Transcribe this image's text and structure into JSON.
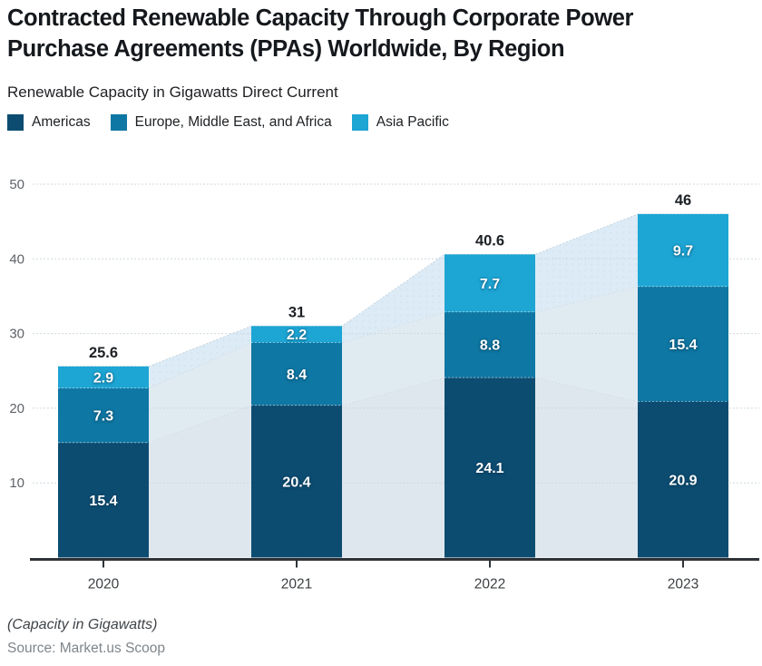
{
  "header": {
    "title": "Contracted Renewable Capacity Through Corporate Power Purchase Agreements (PPAs) Worldwide, By Region",
    "subtitle": "Renewable Capacity in Gigawatts Direct Current"
  },
  "legend": [
    {
      "label": "Americas",
      "color": "#0d4c71"
    },
    {
      "label": "Europe, Middle East, and Africa",
      "color": "#0e77a3"
    },
    {
      "label": "Asia Pacific",
      "color": "#1da5d4"
    }
  ],
  "chart_data": {
    "type": "bar",
    "stacked": true,
    "title": "Contracted Renewable Capacity Through Corporate Power Purchase Agreements (PPAs) Worldwide, By Region",
    "subtitle": "Renewable Capacity in Gigawatts Direct Current",
    "categories": [
      "2020",
      "2021",
      "2022",
      "2023"
    ],
    "series": [
      {
        "name": "Americas",
        "color": "#0d4c71",
        "values": [
          15.4,
          20.4,
          24.1,
          20.9
        ]
      },
      {
        "name": "Europe, Middle East, and Africa",
        "color": "#0e77a3",
        "values": [
          7.3,
          8.4,
          8.8,
          15.4
        ]
      },
      {
        "name": "Asia Pacific",
        "color": "#1da5d4",
        "values": [
          2.9,
          2.2,
          7.7,
          9.7
        ]
      }
    ],
    "totals": [
      25.6,
      31,
      40.6,
      46
    ],
    "ylim": [
      0,
      50
    ],
    "yticks": [
      10,
      20,
      30,
      40,
      50
    ],
    "grid": "horizontal-dashed",
    "legend_position": "top-left",
    "background_area": true,
    "area_band_colors": [
      "#dee7ed",
      "#e0eaf1",
      "#dcebf5"
    ],
    "gridline_color": "#ccd9e0",
    "axis_color": "#2f3337"
  },
  "footer": {
    "note": "(Capacity in Gigawatts)",
    "source": "Source: Market.us Scoop"
  }
}
